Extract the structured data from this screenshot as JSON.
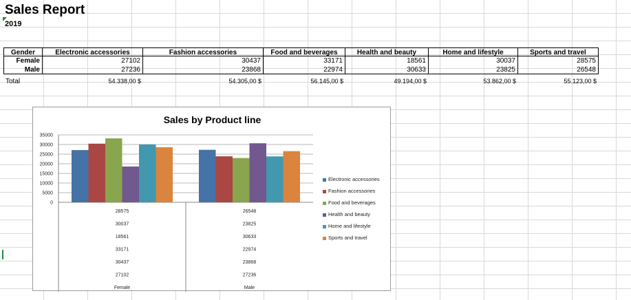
{
  "sheet": {
    "title": "Sales Report",
    "year": "2019"
  },
  "table": {
    "headers": [
      "Gender",
      "Electronic accessories",
      "Fashion accessories",
      "Food and beverages",
      "Health and beauty",
      "Home and lifestyle",
      "Sports and travel"
    ],
    "rows": [
      {
        "label": "Female",
        "values": [
          "27102",
          "30437",
          "33171",
          "18561",
          "30037",
          "28575"
        ]
      },
      {
        "label": "Male",
        "values": [
          "27236",
          "23868",
          "22974",
          "30633",
          "23825",
          "26548"
        ]
      }
    ],
    "total": {
      "label": "Total",
      "values": [
        "54.338,00 $",
        "54.305,00 $",
        "56.145,00 $",
        "49.194,00 $",
        "53.862,00 $",
        "55.123,00 $"
      ]
    }
  },
  "chart_data": {
    "type": "bar",
    "title": "Sales by Product line",
    "categories": [
      "Female",
      "Male"
    ],
    "series": [
      {
        "name": "Electronic accessories",
        "color": "#4572A7",
        "values": [
          27102,
          27236
        ]
      },
      {
        "name": "Fashion accessories",
        "color": "#AA4643",
        "values": [
          30437,
          23868
        ]
      },
      {
        "name": "Food and beverages",
        "color": "#89A54E",
        "values": [
          33171,
          22974
        ]
      },
      {
        "name": "Health and beauty",
        "color": "#71588F",
        "values": [
          18561,
          30633
        ]
      },
      {
        "name": "Home and lifestyle",
        "color": "#4198AF",
        "values": [
          30037,
          23825
        ]
      },
      {
        "name": "Sports and travel",
        "color": "#DB843D",
        "values": [
          28575,
          26548
        ]
      }
    ],
    "ylim": [
      0,
      35000
    ],
    "yticks": [
      "0",
      "5000",
      "10000",
      "15000",
      "20000",
      "25000",
      "30000",
      "35000"
    ],
    "data_table": {
      "rows": [
        [
          "28575",
          "26548"
        ],
        [
          "30037",
          "23825"
        ],
        [
          "18561",
          "30633"
        ],
        [
          "33171",
          "22974"
        ],
        [
          "30437",
          "23868"
        ],
        [
          "27102",
          "27236"
        ],
        [
          "Female",
          "Male"
        ]
      ]
    },
    "legend_position": "right",
    "grid": true
  }
}
